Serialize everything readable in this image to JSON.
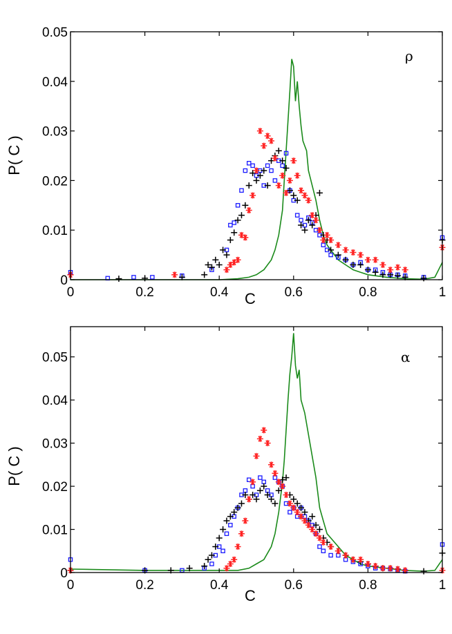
{
  "figure": {
    "panel_count": 2
  },
  "colors": {
    "green": "#1a8a1a",
    "blue": "#1a1aff",
    "black": "#000000",
    "red": "#ff2020"
  },
  "chart_data": [
    {
      "type": "scatter",
      "panel_label": "ρ",
      "xlabel": "C",
      "ylabel": "P( C )",
      "xlim": [
        0,
        1
      ],
      "ylim": [
        0,
        0.05
      ],
      "xticks": [
        0,
        0.2,
        0.4,
        0.6,
        0.8,
        1
      ],
      "xtick_labels": [
        "0",
        "0.2",
        "0.4",
        "0.6",
        "0.8",
        "1"
      ],
      "yticks": [
        0,
        0.01,
        0.02,
        0.03,
        0.04,
        0.05
      ],
      "ytick_labels": [
        "0",
        "0.01",
        "0.02",
        "0.03",
        "0.04",
        "0.05"
      ],
      "series": [
        {
          "name": "green-line",
          "kind": "line",
          "color": "#1a8a1a",
          "x": [
            0,
            0.3,
            0.4,
            0.45,
            0.48,
            0.5,
            0.52,
            0.54,
            0.55,
            0.56,
            0.57,
            0.575,
            0.58,
            0.585,
            0.59,
            0.595,
            0.6,
            0.605,
            0.61,
            0.615,
            0.62,
            0.625,
            0.63,
            0.635,
            0.64,
            0.65,
            0.66,
            0.67,
            0.68,
            0.69,
            0.7,
            0.72,
            0.74,
            0.76,
            0.78,
            0.8,
            0.85,
            0.9,
            0.95,
            0.98,
            1.0
          ],
          "y": [
            0,
            0,
            0,
            0.0002,
            0.0005,
            0.001,
            0.002,
            0.004,
            0.006,
            0.009,
            0.014,
            0.02,
            0.026,
            0.032,
            0.038,
            0.0445,
            0.043,
            0.036,
            0.04,
            0.035,
            0.031,
            0.028,
            0.027,
            0.026,
            0.022,
            0.019,
            0.016,
            0.012,
            0.009,
            0.007,
            0.006,
            0.004,
            0.003,
            0.002,
            0.0015,
            0.001,
            0.0005,
            0.0002,
            0.0001,
            0.0005,
            0.0035
          ]
        },
        {
          "name": "blue-squares",
          "kind": "scatter",
          "marker": "square",
          "color": "#1a1aff",
          "x": [
            0,
            0.1,
            0.17,
            0.22,
            0.3,
            0.38,
            0.42,
            0.43,
            0.44,
            0.45,
            0.46,
            0.47,
            0.48,
            0.49,
            0.5,
            0.51,
            0.52,
            0.53,
            0.54,
            0.55,
            0.56,
            0.57,
            0.58,
            0.59,
            0.6,
            0.61,
            0.62,
            0.63,
            0.64,
            0.65,
            0.66,
            0.67,
            0.68,
            0.69,
            0.7,
            0.72,
            0.74,
            0.76,
            0.78,
            0.8,
            0.82,
            0.84,
            0.86,
            0.88,
            0.9,
            0.95,
            1.0
          ],
          "y": [
            0.0015,
            0.0003,
            0.0005,
            0.0005,
            0.0008,
            0.002,
            0.006,
            0.011,
            0.0115,
            0.015,
            0.018,
            0.022,
            0.0235,
            0.023,
            0.021,
            0.022,
            0.019,
            0.023,
            0.022,
            0.02,
            0.024,
            0.023,
            0.0255,
            0.018,
            0.016,
            0.013,
            0.012,
            0.011,
            0.0125,
            0.0115,
            0.01,
            0.009,
            0.007,
            0.006,
            0.005,
            0.0045,
            0.004,
            0.003,
            0.0035,
            0.002,
            0.002,
            0.0015,
            0.001,
            0.001,
            0.0008,
            0.0005,
            0.0085
          ]
        },
        {
          "name": "black-plus",
          "kind": "scatter",
          "marker": "plus",
          "color": "#000000",
          "x": [
            0,
            0.13,
            0.2,
            0.3,
            0.36,
            0.37,
            0.38,
            0.39,
            0.4,
            0.41,
            0.42,
            0.43,
            0.44,
            0.45,
            0.46,
            0.47,
            0.48,
            0.49,
            0.5,
            0.51,
            0.52,
            0.53,
            0.54,
            0.55,
            0.56,
            0.57,
            0.58,
            0.59,
            0.6,
            0.61,
            0.62,
            0.63,
            0.64,
            0.65,
            0.66,
            0.67,
            0.68,
            0.69,
            0.7,
            0.72,
            0.74,
            0.76,
            0.78,
            0.8,
            0.82,
            0.84,
            0.86,
            0.88,
            0.9,
            0.95,
            1.0
          ],
          "y": [
            0.001,
            0.0002,
            0.0003,
            0.0005,
            0.001,
            0.003,
            0.0025,
            0.004,
            0.003,
            0.006,
            0.005,
            0.008,
            0.0095,
            0.012,
            0.013,
            0.015,
            0.019,
            0.0215,
            0.02,
            0.021,
            0.022,
            0.019,
            0.024,
            0.025,
            0.026,
            0.024,
            0.0225,
            0.018,
            0.017,
            0.016,
            0.011,
            0.01,
            0.012,
            0.011,
            0.013,
            0.0175,
            0.009,
            0.008,
            0.006,
            0.005,
            0.004,
            0.003,
            0.003,
            0.002,
            0.0015,
            0.001,
            0.001,
            0.0008,
            0.0005,
            0.0003,
            0.008
          ]
        },
        {
          "name": "red-asterisks",
          "kind": "scatter",
          "marker": "asterisk",
          "color": "#ff2020",
          "x": [
            0,
            0.28,
            0.42,
            0.43,
            0.44,
            0.45,
            0.46,
            0.47,
            0.48,
            0.49,
            0.5,
            0.51,
            0.52,
            0.53,
            0.54,
            0.55,
            0.56,
            0.57,
            0.58,
            0.59,
            0.6,
            0.61,
            0.62,
            0.63,
            0.64,
            0.65,
            0.66,
            0.67,
            0.68,
            0.69,
            0.7,
            0.72,
            0.74,
            0.76,
            0.78,
            0.8,
            0.82,
            0.84,
            0.86,
            0.88,
            0.9,
            1.0
          ],
          "y": [
            0.001,
            0.001,
            0.002,
            0.003,
            0.0035,
            0.004,
            0.009,
            0.0085,
            0.014,
            0.017,
            0.022,
            0.03,
            0.027,
            0.029,
            0.028,
            0.0245,
            0.019,
            0.021,
            0.0175,
            0.02,
            0.024,
            0.021,
            0.018,
            0.017,
            0.016,
            0.013,
            0.012,
            0.01,
            0.008,
            0.009,
            0.008,
            0.007,
            0.006,
            0.0055,
            0.005,
            0.004,
            0.004,
            0.003,
            0.002,
            0.0025,
            0.002,
            0.0065
          ]
        }
      ]
    },
    {
      "type": "scatter",
      "panel_label": "α",
      "xlabel": "C",
      "ylabel": "P( C )",
      "xlim": [
        0,
        1
      ],
      "ylim": [
        0,
        0.057
      ],
      "xticks": [
        0,
        0.2,
        0.4,
        0.6,
        0.8,
        1
      ],
      "xtick_labels": [
        "0",
        "0.2",
        "0.4",
        "0.6",
        "0.8",
        "1"
      ],
      "yticks": [
        0,
        0.01,
        0.02,
        0.03,
        0.04,
        0.05
      ],
      "ytick_labels": [
        "0",
        "0.01",
        "0.02",
        "0.03",
        "0.04",
        "0.05"
      ],
      "series": [
        {
          "name": "green-line",
          "kind": "line",
          "color": "#1a8a1a",
          "x": [
            0,
            0.2,
            0.3,
            0.4,
            0.45,
            0.48,
            0.5,
            0.52,
            0.54,
            0.55,
            0.56,
            0.57,
            0.575,
            0.58,
            0.585,
            0.59,
            0.595,
            0.6,
            0.605,
            0.61,
            0.615,
            0.62,
            0.63,
            0.64,
            0.65,
            0.66,
            0.67,
            0.68,
            0.69,
            0.7,
            0.72,
            0.74,
            0.76,
            0.78,
            0.8,
            0.85,
            0.9,
            0.95,
            0.98,
            1.0
          ],
          "y": [
            0.0008,
            0.0005,
            0.0005,
            0.0005,
            0.0005,
            0.001,
            0.002,
            0.003,
            0.006,
            0.009,
            0.014,
            0.021,
            0.026,
            0.033,
            0.04,
            0.046,
            0.05,
            0.0555,
            0.048,
            0.045,
            0.047,
            0.04,
            0.037,
            0.032,
            0.027,
            0.022,
            0.015,
            0.012,
            0.009,
            0.008,
            0.006,
            0.004,
            0.003,
            0.002,
            0.0015,
            0.001,
            0.0005,
            0.0003,
            0.0005,
            0.003
          ]
        },
        {
          "name": "blue-squares",
          "kind": "scatter",
          "marker": "square",
          "color": "#1a1aff",
          "x": [
            0,
            0.2,
            0.3,
            0.36,
            0.38,
            0.39,
            0.4,
            0.41,
            0.42,
            0.43,
            0.44,
            0.45,
            0.46,
            0.47,
            0.48,
            0.49,
            0.5,
            0.51,
            0.52,
            0.53,
            0.54,
            0.55,
            0.56,
            0.57,
            0.58,
            0.59,
            0.6,
            0.61,
            0.62,
            0.63,
            0.64,
            0.65,
            0.66,
            0.67,
            0.68,
            0.7,
            0.72,
            0.74,
            0.76,
            0.78,
            0.8,
            0.82,
            0.84,
            0.86,
            0.88,
            0.9,
            1.0
          ],
          "y": [
            0.003,
            0.0005,
            0.0005,
            0.001,
            0.002,
            0.004,
            0.006,
            0.005,
            0.009,
            0.011,
            0.013,
            0.015,
            0.018,
            0.019,
            0.0215,
            0.02,
            0.018,
            0.022,
            0.021,
            0.019,
            0.018,
            0.022,
            0.021,
            0.02,
            0.016,
            0.014,
            0.015,
            0.013,
            0.015,
            0.013,
            0.012,
            0.011,
            0.009,
            0.006,
            0.005,
            0.004,
            0.004,
            0.003,
            0.0025,
            0.002,
            0.0015,
            0.001,
            0.001,
            0.0008,
            0.0005,
            0.0003,
            0.0065
          ]
        },
        {
          "name": "black-plus",
          "kind": "scatter",
          "marker": "plus",
          "color": "#000000",
          "x": [
            0,
            0.2,
            0.27,
            0.32,
            0.36,
            0.37,
            0.38,
            0.39,
            0.4,
            0.41,
            0.42,
            0.43,
            0.44,
            0.45,
            0.46,
            0.47,
            0.48,
            0.49,
            0.5,
            0.51,
            0.52,
            0.53,
            0.54,
            0.55,
            0.56,
            0.57,
            0.58,
            0.59,
            0.6,
            0.61,
            0.62,
            0.63,
            0.64,
            0.65,
            0.66,
            0.67,
            0.68,
            0.69,
            0.7,
            0.72,
            0.74,
            0.76,
            0.78,
            0.8,
            0.82,
            0.84,
            0.86,
            0.88,
            0.9,
            0.95,
            1.0
          ],
          "y": [
            0.0005,
            0.0005,
            0.0005,
            0.001,
            0.0015,
            0.003,
            0.004,
            0.006,
            0.008,
            0.01,
            0.012,
            0.013,
            0.014,
            0.015,
            0.016,
            0.018,
            0.017,
            0.018,
            0.017,
            0.019,
            0.02,
            0.018,
            0.017,
            0.016,
            0.019,
            0.0215,
            0.022,
            0.018,
            0.017,
            0.016,
            0.015,
            0.014,
            0.012,
            0.013,
            0.011,
            0.01,
            0.008,
            0.007,
            0.006,
            0.005,
            0.004,
            0.003,
            0.0025,
            0.002,
            0.0015,
            0.001,
            0.001,
            0.0008,
            0.0005,
            0.0003,
            0.0045
          ]
        },
        {
          "name": "red-asterisks",
          "kind": "scatter",
          "marker": "asterisk",
          "color": "#ff2020",
          "x": [
            0,
            0.42,
            0.43,
            0.44,
            0.45,
            0.46,
            0.47,
            0.48,
            0.49,
            0.5,
            0.51,
            0.52,
            0.53,
            0.54,
            0.55,
            0.56,
            0.57,
            0.58,
            0.59,
            0.6,
            0.61,
            0.62,
            0.63,
            0.64,
            0.65,
            0.66,
            0.67,
            0.68,
            0.7,
            0.72,
            0.74,
            0.76,
            0.78,
            0.8,
            0.82,
            0.84,
            0.86,
            0.88,
            0.9,
            1.0
          ],
          "y": [
            0.0005,
            0.001,
            0.002,
            0.003,
            0.006,
            0.009,
            0.012,
            0.017,
            0.021,
            0.027,
            0.031,
            0.033,
            0.03,
            0.025,
            0.023,
            0.021,
            0.02,
            0.018,
            0.016,
            0.015,
            0.014,
            0.013,
            0.012,
            0.011,
            0.01,
            0.009,
            0.008,
            0.007,
            0.006,
            0.005,
            0.004,
            0.003,
            0.003,
            0.002,
            0.0015,
            0.001,
            0.001,
            0.0008,
            0.0005,
            0.0005
          ]
        }
      ]
    }
  ]
}
